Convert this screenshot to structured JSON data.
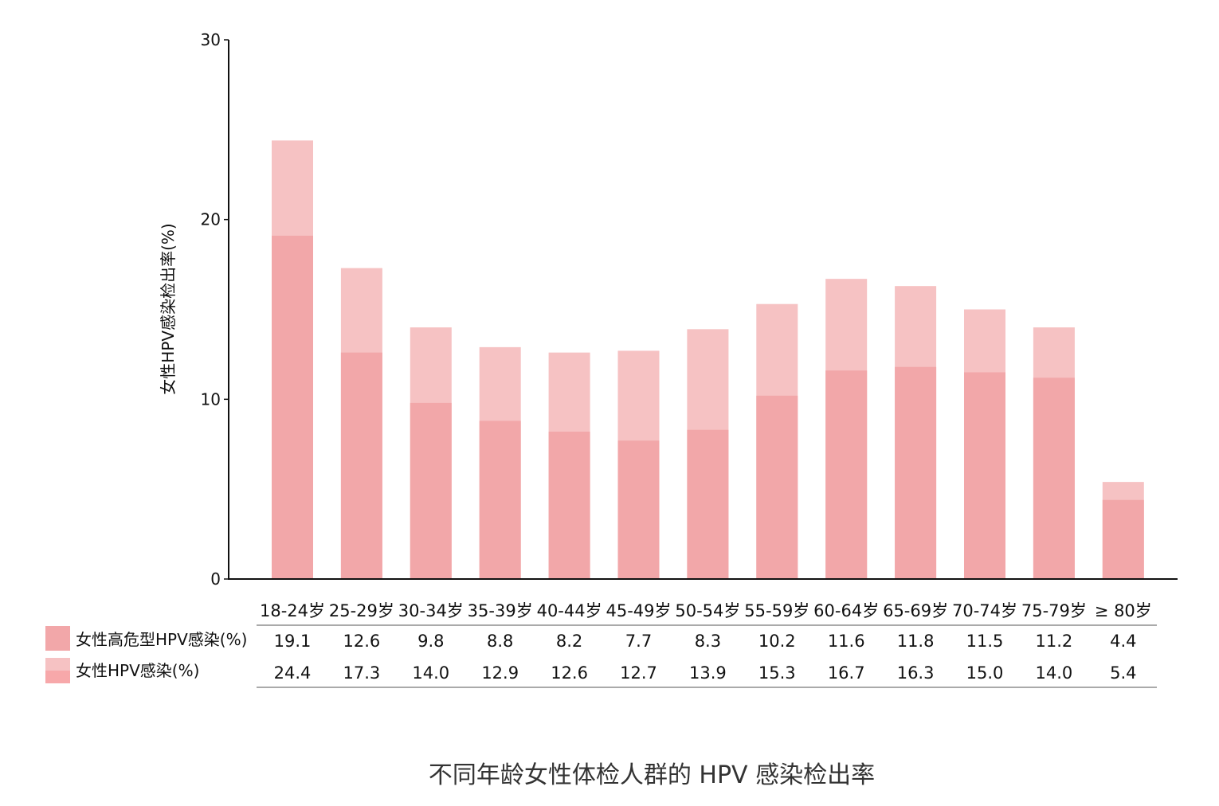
{
  "chart_data": {
    "type": "bar",
    "title": "不同年龄女性体检人群的 HPV 感染检出率",
    "ylabel": "女性HPV感染检出率(%)",
    "xlabel": "",
    "ylim": [
      0,
      30
    ],
    "yticks": [
      0,
      10,
      20,
      30
    ],
    "categories": [
      "18-24岁",
      "25-29岁",
      "30-34岁",
      "35-39岁",
      "40-44岁",
      "45-49岁",
      "50-54岁",
      "55-59岁",
      "60-64岁",
      "65-69岁",
      "70-74岁",
      "75-79岁",
      "≥ 80岁"
    ],
    "series": [
      {
        "name": "女性高危型HPV感染(%)",
        "color": "#f2a7a9",
        "values": [
          19.1,
          12.6,
          9.8,
          8.8,
          8.2,
          7.7,
          8.3,
          10.2,
          11.6,
          11.8,
          11.5,
          11.2,
          4.4
        ],
        "labels": [
          "19.1",
          "12.6",
          "9.8",
          "8.8",
          "8.2",
          "7.7",
          "8.3",
          "10.2",
          "11.6",
          "11.8",
          "11.5",
          "11.2",
          "4.4"
        ]
      },
      {
        "name": "女性HPV感染(%)",
        "color": "#f6c2c3",
        "values": [
          24.4,
          17.3,
          14.0,
          12.9,
          12.6,
          12.7,
          13.9,
          15.3,
          16.7,
          16.3,
          15.0,
          14.0,
          5.4
        ],
        "labels": [
          "24.4",
          "17.3",
          "14.0",
          "12.9",
          "12.6",
          "12.7",
          "13.9",
          "15.3",
          "16.7",
          "16.3",
          "15.0",
          "14.0",
          "5.4"
        ]
      }
    ],
    "overlay": "overlapped",
    "grid": false,
    "legend": "table-left",
    "legend_hpv_swatch_bottom_color": "#f7a8aa"
  }
}
